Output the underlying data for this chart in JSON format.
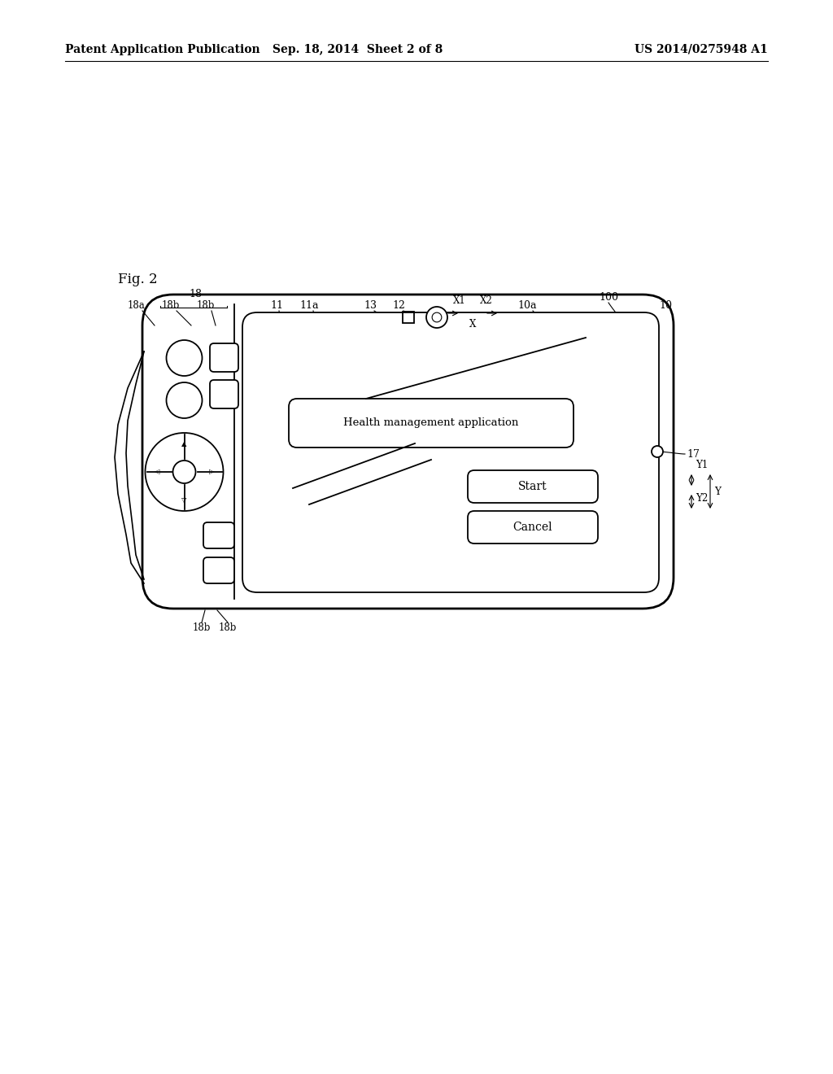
{
  "title_left": "Patent Application Publication",
  "title_center": "Sep. 18, 2014  Sheet 2 of 8",
  "title_right": "US 2014/0275948 A1",
  "background_color": "#ffffff",
  "line_color": "#000000"
}
